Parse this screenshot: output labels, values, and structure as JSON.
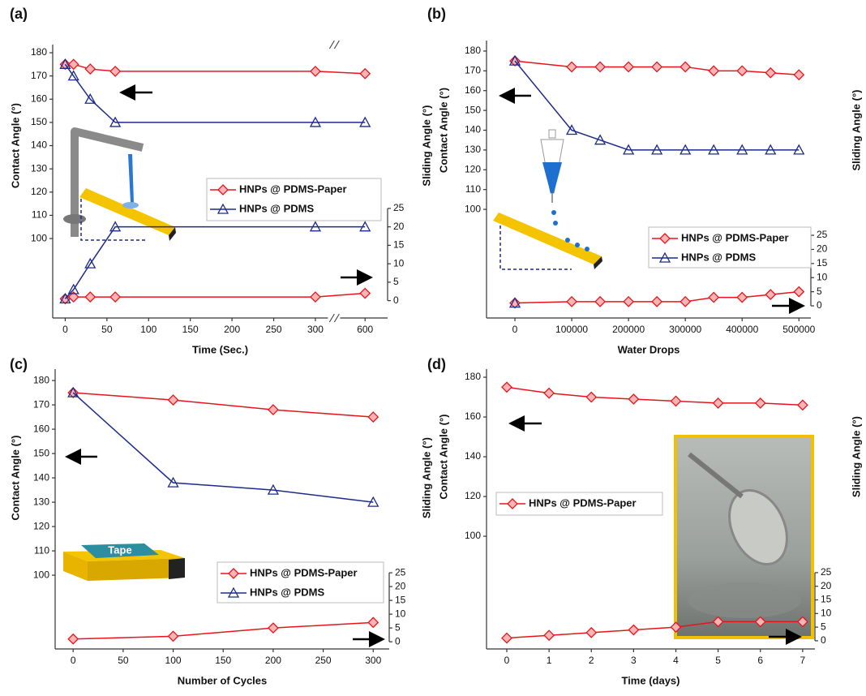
{
  "chart_data": [
    {
      "type": "line",
      "title": "(a)",
      "xlabel": "Time (Sec.)",
      "ylabel": "Contact Angle (°)",
      "y2label": "Sliding Angle (°)",
      "x": [
        0,
        10,
        30,
        60,
        300,
        600
      ],
      "xlim": [
        -15,
        627
      ],
      "xbreak": [
        315,
        570
      ],
      "xticks": [
        0,
        50,
        100,
        150,
        200,
        250,
        300,
        600
      ],
      "ylim": [
        65.8,
        183.5
      ],
      "yticks": [
        100,
        110,
        120,
        130,
        140,
        150,
        160,
        170,
        180
      ],
      "y2lim": [
        -4.7,
        69.4
      ],
      "y2ticks": [
        0,
        5,
        10,
        15,
        20,
        25
      ],
      "series": [
        {
          "name": "HNPs @ PDMS-Paper",
          "color": "#e8141b",
          "marker": "diamond",
          "values": [
            175,
            175,
            173,
            172,
            172,
            171
          ],
          "y2_values": [
            0.5,
            1,
            1,
            1,
            1,
            2
          ]
        },
        {
          "name": "HNPs @ PDMS",
          "color": "#1c2a8c",
          "marker": "triangle",
          "values": [
            175,
            170,
            160,
            150,
            150,
            150
          ],
          "y2_values": [
            0.5,
            3,
            10,
            20,
            20,
            20
          ]
        }
      ]
    },
    {
      "type": "line",
      "title": "(b)",
      "xlabel": "Water Drops",
      "ylabel": "Contact Angle (°)",
      "y2label": "Sliding Angle (°)",
      "x": [
        0,
        100000,
        150000,
        200000,
        250000,
        300000,
        350000,
        400000,
        450000,
        500000
      ],
      "xlim": [
        -50000,
        521000
      ],
      "xticks": [
        0,
        100000,
        200000,
        300000,
        400000,
        500000
      ],
      "ylim": [
        45.1,
        185.3
      ],
      "yticks": [
        100,
        110,
        120,
        130,
        140,
        150,
        160,
        170,
        180
      ],
      "y2lim": [
        -4.3,
        94
      ],
      "y2ticks": [
        0,
        5,
        10,
        15,
        20,
        25
      ],
      "series": [
        {
          "name": "HNPs @ PDMS-Paper",
          "color": "#e8141b",
          "marker": "diamond",
          "values": [
            175,
            172,
            172,
            172,
            172,
            172,
            170,
            170,
            169,
            168
          ],
          "y2_values": [
            1,
            1.5,
            1.5,
            1.5,
            1.5,
            1.5,
            3,
            3,
            4,
            5
          ]
        },
        {
          "name": "HNPs @ PDMS",
          "color": "#1c2a8c",
          "marker": "triangle",
          "values": [
            175,
            140,
            135,
            130,
            130,
            130,
            130,
            130,
            130,
            130
          ],
          "y2_values": [
            1,
            null,
            null,
            null,
            null,
            null,
            null,
            null,
            null,
            null
          ]
        }
      ]
    },
    {
      "type": "line",
      "title": "(c)",
      "xlabel": "Number of Cycles",
      "ylabel": "Contact Angle (°)",
      "y2label": "Sliding Angle (°)",
      "annotations": [
        "Tape"
      ],
      "x": [
        0,
        100,
        200,
        300
      ],
      "xlim": [
        -18,
        316
      ],
      "xticks": [
        0,
        50,
        100,
        150,
        200,
        250,
        300
      ],
      "ylim": [
        69.7,
        184.7
      ],
      "yticks": [
        100,
        110,
        120,
        130,
        140,
        150,
        160,
        170,
        180
      ],
      "y2lim": [
        -2.6,
        98.8
      ],
      "y2ticks": [
        0,
        5,
        10,
        15,
        20,
        25
      ],
      "series": [
        {
          "name": "HNPs @ PDMS-Paper",
          "color": "#e8141b",
          "marker": "diamond",
          "values": [
            175,
            172,
            168,
            165
          ],
          "y2_values": [
            1,
            2,
            5,
            7
          ]
        },
        {
          "name": "HNPs @ PDMS",
          "color": "#1c2a8c",
          "marker": "triangle",
          "values": [
            175,
            138,
            135,
            130
          ]
        }
      ]
    },
    {
      "type": "line",
      "title": "(d)",
      "xlabel": "Time (days)",
      "ylabel": "Contact Angle (°)",
      "y2label": "Sliding Angle (°)",
      "x": [
        0,
        1,
        2,
        3,
        4,
        5,
        6,
        7
      ],
      "xlim": [
        -0.48,
        7.29
      ],
      "xticks": [
        0,
        1,
        2,
        3,
        4,
        5,
        6,
        7
      ],
      "ylim": [
        43.3,
        184.1
      ],
      "yticks": [
        100,
        120,
        140,
        160,
        180
      ],
      "y2lim": [
        -3,
        99.7
      ],
      "y2ticks": [
        0,
        5,
        10,
        15,
        20,
        25
      ],
      "series": [
        {
          "name": "HNPs @ PDMS-Paper",
          "color": "#e8141b",
          "marker": "diamond",
          "values": [
            175,
            172,
            170,
            169,
            168,
            167,
            167,
            166
          ],
          "y2_values": [
            1,
            2,
            3,
            4,
            5,
            7,
            7,
            7
          ]
        }
      ]
    }
  ]
}
